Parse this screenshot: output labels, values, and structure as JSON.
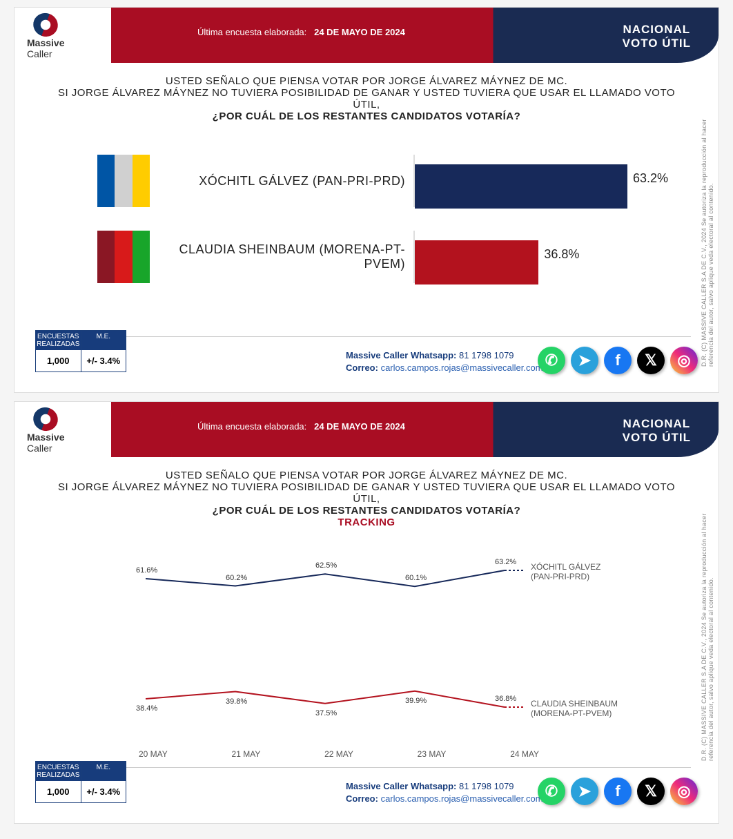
{
  "header": {
    "brand_top": "Massive",
    "brand_bot": "Caller",
    "date_prefix": "Última encuesta elaborada:",
    "date_value": "24 DE MAYO DE 2024",
    "right_line1": "NACIONAL",
    "right_line2": "VOTO ÚTIL"
  },
  "question": {
    "l1": "USTED SEÑALO QUE PIENSA VOTAR POR JORGE ÁLVAREZ MÁYNEZ DE MC.",
    "l2": "SI JORGE ÁLVAREZ MÁYNEZ NO TUVIERA POSIBILIDAD DE GANAR Y USTED TUVIERA QUE USAR EL LLAMADO VOTO ÚTIL,",
    "l3": "¿POR CUÁL DE LOS RESTANTES CANDIDATOS VOTARÍA?",
    "tracking": "TRACKING"
  },
  "side_note": "D.R. (C) MASSIVE CALLER S.A DE C.V., 2024\nSe autoriza la reproducción al hacer referencia del autor, salvo aplique veda electoral al contenido.",
  "bar_chart": {
    "type": "bar",
    "max_pct": 100,
    "candidates": [
      {
        "name": "XÓCHITL GÁLVEZ (PAN-PRI-PRD)",
        "pct": 63.2,
        "pct_label": "63.2%",
        "bar_color": "#17295a",
        "logo_colors": [
          "#0055a5",
          "#d0d0d0",
          "#ffcc00"
        ]
      },
      {
        "name": "CLAUDIA SHEINBAUM (MORENA-PT-PVEM)",
        "pct": 36.8,
        "pct_label": "36.8%",
        "bar_color": "#b3121e",
        "logo_colors": [
          "#8a1724",
          "#d81a1a",
          "#18a52a"
        ]
      }
    ]
  },
  "line_chart": {
    "type": "line",
    "dates": [
      "20 MAY",
      "21 MAY",
      "22 MAY",
      "23 MAY",
      "24 MAY"
    ],
    "ymin": 30,
    "ymax": 70,
    "background": "#ffffff",
    "series": [
      {
        "name": "XÓCHITL GÁLVEZ",
        "sub": "(PAN-PRI-PRD)",
        "color": "#17295a",
        "values": [
          61.6,
          60.2,
          62.5,
          60.1,
          63.2
        ],
        "labels": [
          "61.6%",
          "60.2%",
          "62.5%",
          "60.1%",
          "63.2%"
        ]
      },
      {
        "name": "CLAUDIA SHEINBAUM",
        "sub": "(MORENA-PT-PVEM)",
        "color": "#b3121e",
        "values": [
          38.4,
          39.8,
          37.5,
          39.9,
          36.8
        ],
        "labels": [
          "38.4%",
          "39.8%",
          "37.5%",
          "39.9%",
          "36.8%"
        ]
      }
    ]
  },
  "footer": {
    "sample_hdr1": "ENCUESTAS REALIZADAS",
    "sample_hdr2": "M.E.",
    "sample_v1": "1,000",
    "sample_v2": "+/- 3.4%",
    "whats_label": "Massive Caller Whatsapp:",
    "whats_val": "81 1798 1079",
    "mail_label": "Correo:",
    "mail_val": "carlos.campos.rojas@massivecaller.com",
    "socials": [
      {
        "name": "whatsapp",
        "bg": "#25d366",
        "glyph": "✆"
      },
      {
        "name": "telegram",
        "bg": "#2aa1db",
        "glyph": "➤"
      },
      {
        "name": "facebook",
        "bg": "#1877f2",
        "glyph": "f"
      },
      {
        "name": "x",
        "bg": "#000000",
        "glyph": "𝕏"
      },
      {
        "name": "instagram",
        "bg": "linear-gradient(45deg,#f9ce34,#ee2a7b,#6228d7)",
        "glyph": "◎"
      }
    ]
  }
}
